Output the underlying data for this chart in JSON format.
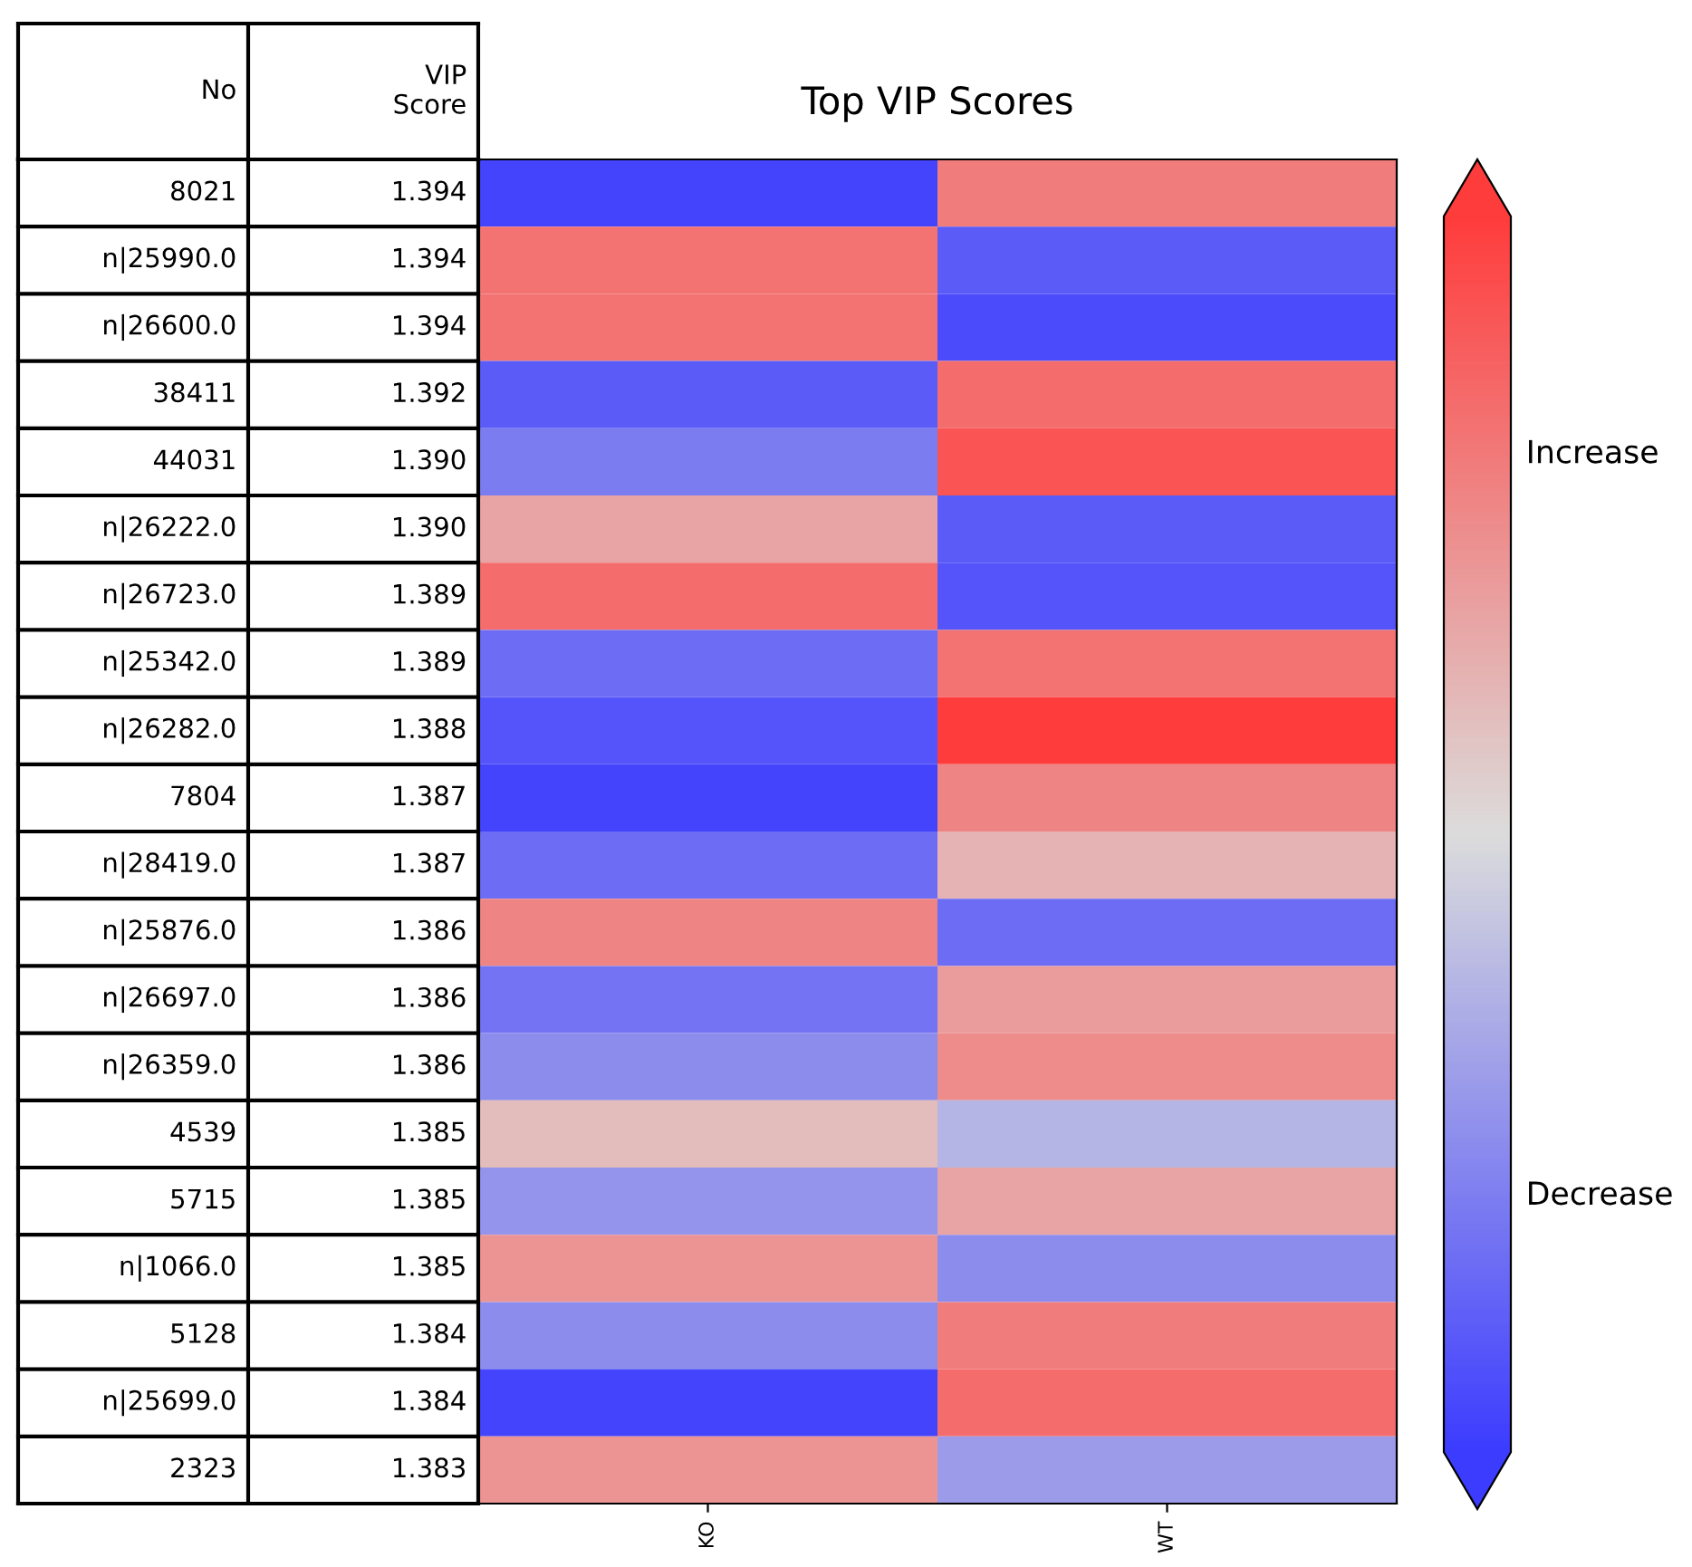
{
  "chart_data": {
    "type": "heatmap",
    "title": "Top VIP Scores",
    "ylabel": "No",
    "y2label": "VIP\nScore",
    "categories": [
      "KO",
      "WT"
    ],
    "y_categories": [
      "8021",
      "n|25990.0",
      "n|26600.0",
      "38411",
      "44031",
      "n|26222.0",
      "n|26723.0",
      "n|25342.0",
      "n|26282.0",
      "7804",
      "n|28419.0",
      "n|25876.0",
      "n|26697.0",
      "n|26359.0",
      "4539",
      "5715",
      "n|1066.0",
      "5128",
      "n|25699.0",
      "2323"
    ],
    "y2_categories": [
      "1.394",
      "1.394",
      "1.394",
      "1.392",
      "1.390",
      "1.390",
      "1.389",
      "1.389",
      "1.388",
      "1.387",
      "1.387",
      "1.386",
      "1.386",
      "1.386",
      "1.385",
      "1.385",
      "1.385",
      "1.384",
      "1.384",
      "1.383"
    ],
    "cells": [
      [
        -0.95,
        0.6
      ],
      [
        0.65,
        -0.8
      ],
      [
        0.65,
        -0.9
      ],
      [
        -0.8,
        0.7
      ],
      [
        -0.6,
        0.85
      ],
      [
        0.35,
        -0.8
      ],
      [
        0.7,
        -0.85
      ],
      [
        -0.7,
        0.65
      ],
      [
        -0.85,
        1.0
      ],
      [
        -0.95,
        0.55
      ],
      [
        -0.7,
        0.25
      ],
      [
        0.55,
        -0.7
      ],
      [
        -0.65,
        0.4
      ],
      [
        -0.5,
        0.5
      ],
      [
        0.2,
        -0.25
      ],
      [
        -0.45,
        0.35
      ],
      [
        0.45,
        -0.5
      ],
      [
        -0.5,
        0.6
      ],
      [
        -0.95,
        0.7
      ],
      [
        0.45,
        -0.4
      ]
    ],
    "clim": [
      -1,
      1
    ],
    "cticks": [
      {
        "value": 0.62,
        "label": "Increase"
      },
      {
        "value": -0.58,
        "label": "Decrease"
      }
    ]
  }
}
